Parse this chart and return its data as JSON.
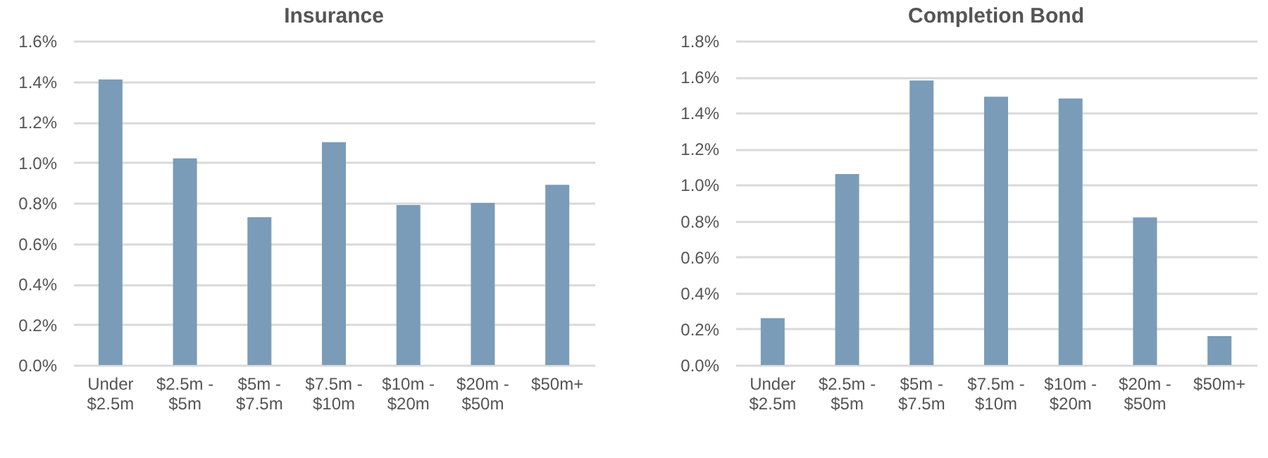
{
  "chart_data": [
    {
      "type": "bar",
      "title": "Insurance",
      "categories": [
        "Under $2.5m",
        "$2.5m - $5m",
        "$5m - $7.5m",
        "$7.5m - $10m",
        "$10m - $20m",
        "$20m - $50m",
        "$50m+"
      ],
      "series": [
        {
          "color": "#7a9cb8",
          "values": [
            1.41,
            1.02,
            0.73,
            1.1,
            0.79,
            0.8,
            0.89
          ]
        }
      ],
      "ylim": [
        0,
        1.6
      ],
      "yticks": [
        {
          "value": 0,
          "label": "0.0%"
        },
        {
          "value": 0.2,
          "label": "0.2%"
        },
        {
          "value": 0.4,
          "label": "0.4%"
        },
        {
          "value": 0.6,
          "label": "0.6%"
        },
        {
          "value": 0.8,
          "label": "0.8%"
        },
        {
          "value": 1.0,
          "label": "1.0%"
        },
        {
          "value": 1.2,
          "label": "1.2%"
        },
        {
          "value": 1.4,
          "label": "1.4%"
        },
        {
          "value": 1.6,
          "label": "1.6%"
        }
      ],
      "grid": "y"
    },
    {
      "type": "bar",
      "title": "Completion Bond",
      "categories": [
        "Under $2.5m",
        "$2.5m - $5m",
        "$5m - $7.5m",
        "$7.5m - $10m",
        "$10m - $20m",
        "$20m - $50m",
        "$50m+"
      ],
      "series": [
        {
          "color": "#7a9cb8",
          "values": [
            0.26,
            1.06,
            1.58,
            1.49,
            1.48,
            0.82,
            0.16
          ]
        }
      ],
      "ylim": [
        0,
        1.8
      ],
      "yticks": [
        {
          "value": 0,
          "label": "0.0%"
        },
        {
          "value": 0.2,
          "label": "0.2%"
        },
        {
          "value": 0.4,
          "label": "0.4%"
        },
        {
          "value": 0.6,
          "label": "0.6%"
        },
        {
          "value": 0.8,
          "label": "0.8%"
        },
        {
          "value": 1.0,
          "label": "1.0%"
        },
        {
          "value": 1.2,
          "label": "1.2%"
        },
        {
          "value": 1.4,
          "label": "1.4%"
        },
        {
          "value": 1.6,
          "label": "1.6%"
        },
        {
          "value": 1.8,
          "label": "1.8%"
        }
      ],
      "grid": "y"
    }
  ]
}
